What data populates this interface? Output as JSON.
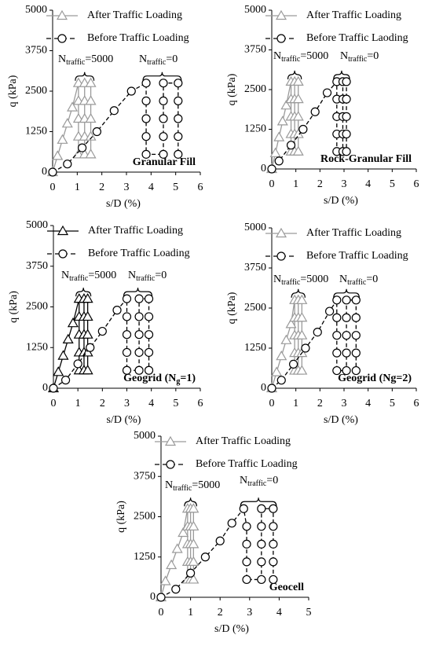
{
  "chart_data": [
    {
      "type": "line",
      "panel_label_parts": [
        "Granular Fill"
      ],
      "x_label": "s/D (%)",
      "y_label": "q (kPa)",
      "xlim": [
        0,
        6
      ],
      "ylim": [
        0,
        5000
      ],
      "xticks": [
        0,
        1,
        2,
        3,
        4,
        5,
        6
      ],
      "yticks": [
        0,
        1250,
        2500,
        3750,
        5000
      ],
      "annotations": [
        [
          "N",
          "traffic",
          "=5000"
        ],
        [
          "N",
          "traffic",
          "=0"
        ]
      ],
      "series": [
        {
          "name": "After Traffic Loading",
          "color": "#9a9a9a",
          "marker": "triangle",
          "dashed": false,
          "x": [
            0,
            0.2,
            0.4,
            0.6,
            0.8,
            1.05,
            1.05,
            1.05,
            1.05,
            1.05,
            1.3,
            1.3,
            1.3,
            1.3,
            1.3,
            1.55,
            1.55,
            1.55,
            1.55,
            1.55
          ],
          "values": [
            0,
            500,
            1000,
            1500,
            2000,
            2750,
            2200,
            1650,
            1100,
            550,
            550,
            1100,
            1650,
            2200,
            2750,
            2750,
            2200,
            1650,
            1100,
            550
          ]
        },
        {
          "name": "Before Traffic Loading",
          "color": "#000000",
          "marker": "circle",
          "dashed": true,
          "x": [
            0,
            0.6,
            1.2,
            1.8,
            2.5,
            3.2,
            3.8,
            3.8,
            3.8,
            3.8,
            3.8,
            4.5,
            4.5,
            4.5,
            4.5,
            4.5,
            5.1,
            5.1,
            5.1,
            5.1,
            5.1
          ],
          "values": [
            0,
            250,
            750,
            1250,
            1900,
            2500,
            2750,
            2200,
            1650,
            1100,
            550,
            550,
            1100,
            1650,
            2200,
            2750,
            2750,
            2200,
            1650,
            1100,
            550
          ]
        }
      ]
    },
    {
      "type": "line",
      "panel_label_parts": [
        "Rock-Granular Fill"
      ],
      "x_label": "s/D (%)",
      "y_label": "q (kPa)",
      "xlim": [
        0,
        6
      ],
      "ylim": [
        0,
        5000
      ],
      "xticks": [
        0,
        1,
        2,
        3,
        4,
        5,
        6
      ],
      "yticks": [
        0,
        1250,
        2500,
        3750,
        5000
      ],
      "annotations": [
        [
          "N",
          "traffic",
          "=5000"
        ],
        [
          "N",
          "traffic",
          "=0"
        ]
      ],
      "series": [
        {
          "name": "After Traffic Loading",
          "color": "#9a9a9a",
          "marker": "triangle",
          "dashed": false,
          "x": [
            0,
            0.15,
            0.3,
            0.45,
            0.6,
            0.8,
            0.8,
            0.8,
            0.8,
            0.8,
            0.95,
            0.95,
            0.95,
            0.95,
            0.95,
            1.1,
            1.1,
            1.1,
            1.1,
            1.1
          ],
          "values": [
            0,
            500,
            1000,
            1500,
            2000,
            2750,
            2200,
            1650,
            1100,
            550,
            550,
            1100,
            1650,
            2200,
            2750,
            2750,
            2200,
            1650,
            1100,
            550
          ]
        },
        {
          "name": "Before Traffic Laoding",
          "color": "#000000",
          "marker": "circle",
          "dashed": true,
          "x": [
            0,
            0.3,
            0.8,
            1.3,
            1.8,
            2.3,
            2.7,
            2.7,
            2.7,
            2.7,
            2.7,
            2.95,
            2.95,
            2.95,
            2.95,
            2.95,
            3.1,
            3.1,
            3.1,
            3.1,
            3.1
          ],
          "values": [
            0,
            250,
            750,
            1250,
            1800,
            2400,
            2750,
            2200,
            1650,
            1100,
            550,
            550,
            1100,
            1650,
            2200,
            2750,
            2750,
            2200,
            1650,
            1100,
            550
          ]
        }
      ]
    },
    {
      "type": "line",
      "panel_label_parts": [
        "Geogrid (N",
        "g",
        "=1)"
      ],
      "x_label": "s/D (%)",
      "y_label": "q (kPa)",
      "xlim": [
        0,
        6
      ],
      "ylim": [
        0,
        5000
      ],
      "xticks": [
        0,
        1,
        2,
        3,
        4,
        5,
        6
      ],
      "yticks": [
        0,
        1250,
        2500,
        3750,
        5000
      ],
      "annotations": [
        [
          "N",
          "traffic",
          "=5000"
        ],
        [
          "N",
          "traffic",
          "=0"
        ]
      ],
      "series": [
        {
          "name": "After Traffic Loading",
          "color": "#000000",
          "marker": "triangle",
          "dashed": false,
          "x": [
            0,
            0.2,
            0.4,
            0.6,
            0.8,
            1.05,
            1.05,
            1.05,
            1.05,
            1.05,
            1.25,
            1.25,
            1.25,
            1.25,
            1.25,
            1.4,
            1.4,
            1.4,
            1.4,
            1.4
          ],
          "values": [
            0,
            500,
            1000,
            1500,
            2000,
            2750,
            2200,
            1650,
            1100,
            550,
            550,
            1100,
            1650,
            2200,
            2750,
            2750,
            2200,
            1650,
            1100,
            550
          ]
        },
        {
          "name": "Before Traffic Loading",
          "color": "#000000",
          "marker": "circle",
          "dashed": true,
          "x": [
            0,
            0.5,
            1.0,
            1.5,
            2.0,
            2.6,
            3.0,
            3.0,
            3.0,
            3.0,
            3.0,
            3.5,
            3.5,
            3.5,
            3.5,
            3.5,
            3.9,
            3.9,
            3.9,
            3.9,
            3.9
          ],
          "values": [
            0,
            250,
            750,
            1250,
            1750,
            2400,
            2750,
            2200,
            1650,
            1100,
            550,
            550,
            1100,
            1650,
            2200,
            2750,
            2750,
            2200,
            1650,
            1100,
            550
          ]
        }
      ]
    },
    {
      "type": "line",
      "panel_label_parts": [
        "Geogrid (Ng=2)"
      ],
      "x_label": "s/D (%)",
      "y_label": "q (kPa)",
      "xlim": [
        0,
        6
      ],
      "ylim": [
        0,
        5000
      ],
      "xticks": [
        0,
        1,
        2,
        3,
        4,
        5,
        6
      ],
      "yticks": [
        0,
        1250,
        2500,
        3750,
        5000
      ],
      "annotations": [
        [
          "N",
          "traffic",
          "=5000"
        ],
        [
          "N",
          "traffic",
          "=0"
        ]
      ],
      "series": [
        {
          "name": "After Traffic Loading",
          "color": "#9a9a9a",
          "marker": "triangle",
          "dashed": false,
          "x": [
            0,
            0.2,
            0.4,
            0.6,
            0.8,
            0.95,
            0.95,
            0.95,
            0.95,
            0.95,
            1.1,
            1.1,
            1.1,
            1.1,
            1.1,
            1.25,
            1.25,
            1.25,
            1.25,
            1.25
          ],
          "values": [
            0,
            500,
            1000,
            1500,
            2000,
            2750,
            2200,
            1650,
            1100,
            550,
            550,
            1100,
            1650,
            2200,
            2750,
            2750,
            2200,
            1650,
            1100,
            550
          ]
        },
        {
          "name": "Before Traffic Loading",
          "color": "#000000",
          "marker": "circle",
          "dashed": true,
          "x": [
            0,
            0.4,
            0.9,
            1.4,
            1.9,
            2.4,
            2.7,
            2.7,
            2.7,
            2.7,
            2.7,
            3.1,
            3.1,
            3.1,
            3.1,
            3.1,
            3.5,
            3.5,
            3.5,
            3.5,
            3.5
          ],
          "values": [
            0,
            250,
            750,
            1250,
            1750,
            2400,
            2750,
            2200,
            1650,
            1100,
            550,
            550,
            1100,
            1650,
            2200,
            2750,
            2750,
            2200,
            1650,
            1100,
            550
          ]
        }
      ]
    },
    {
      "type": "line",
      "panel_label_parts": [
        "Geocell"
      ],
      "x_label": "s/D (%)",
      "y_label": "q (kPa)",
      "xlim": [
        0,
        5
      ],
      "ylim": [
        0,
        5000
      ],
      "xticks": [
        0,
        1,
        2,
        3,
        4,
        5
      ],
      "yticks": [
        0,
        1250,
        2500,
        3750,
        5000
      ],
      "annotations": [
        [
          "N",
          "traffic",
          "=5000"
        ],
        [
          "N",
          "traffic",
          "=0"
        ]
      ],
      "series": [
        {
          "name": "After Traffic Loading",
          "color": "#9a9a9a",
          "marker": "triangle",
          "dashed": false,
          "x": [
            0,
            0.15,
            0.35,
            0.55,
            0.75,
            0.9,
            0.9,
            0.9,
            0.9,
            0.9,
            1.0,
            1.0,
            1.0,
            1.0,
            1.0,
            1.1,
            1.1,
            1.1,
            1.1,
            1.1
          ],
          "values": [
            0,
            500,
            1000,
            1500,
            2000,
            2750,
            2200,
            1650,
            1100,
            550,
            550,
            1100,
            1650,
            2200,
            2750,
            2750,
            2200,
            1650,
            1100,
            550
          ]
        },
        {
          "name": "Before Traffic Loading",
          "color": "#000000",
          "marker": "circle",
          "dashed": true,
          "x": [
            0,
            0.5,
            1.0,
            1.5,
            2.0,
            2.4,
            2.8,
            2.9,
            2.9,
            2.9,
            2.9,
            3.4,
            3.4,
            3.4,
            3.4,
            3.4,
            3.8,
            3.8,
            3.8,
            3.8,
            3.8
          ],
          "values": [
            0,
            250,
            750,
            1250,
            1750,
            2300,
            2750,
            2200,
            1650,
            1100,
            550,
            550,
            1100,
            1650,
            2200,
            2750,
            2750,
            2200,
            1650,
            1100,
            550
          ]
        }
      ]
    }
  ]
}
